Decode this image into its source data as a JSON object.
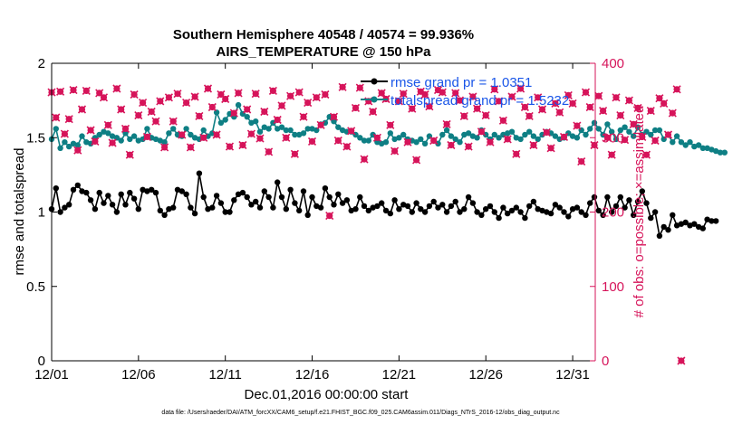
{
  "chart_data": {
    "type": "line",
    "title": "Southern Hemisphere 40548 / 40574 = 99.936%",
    "subtitle": "AIRS_TEMPERATURE @ 150 hPa",
    "xlabel": "Dec.01,2016 00:00:00 start",
    "ylabel": "rmse and totalspread",
    "ylabel_right": "# of obs: o=possible; ×=assimilated",
    "ylim": [
      0,
      2
    ],
    "ylim_right": [
      0,
      400
    ],
    "xlim": [
      0,
      31.3
    ],
    "x_ticks": [
      0,
      5,
      10,
      15,
      20,
      25,
      30
    ],
    "x_tick_labels": [
      "12/01",
      "12/06",
      "12/11",
      "12/16",
      "12/21",
      "12/26",
      "12/31"
    ],
    "y_ticks": [
      0,
      0.5,
      1,
      1.5,
      2
    ],
    "y_tick_labels": [
      "0",
      "0.5",
      "1",
      "1.5",
      "2"
    ],
    "y_ticks_right": [
      0,
      100,
      200,
      300,
      400
    ],
    "y_tick_labels_right": [
      "0",
      "100",
      "200",
      "300",
      "400"
    ],
    "legend_position": "top-right",
    "x_step": 0.25,
    "series": [
      {
        "name": "rmse grand pr = 1.0351",
        "color": "#000000",
        "axis": "left",
        "values": [
          1.02,
          1.16,
          1.0,
          1.03,
          1.05,
          1.15,
          1.18,
          1.14,
          1.13,
          1.08,
          1.02,
          1.13,
          1.06,
          1.11,
          1.05,
          1.0,
          1.12,
          1.05,
          1.13,
          1.09,
          1.02,
          1.15,
          1.14,
          1.15,
          1.13,
          1.01,
          0.98,
          1.02,
          1.03,
          1.15,
          1.14,
          1.12,
          1.03,
          0.99,
          1.26,
          1.1,
          1.02,
          1.03,
          1.11,
          1.06,
          1.0,
          1.0,
          1.08,
          1.12,
          1.13,
          1.1,
          1.05,
          1.07,
          1.03,
          1.14,
          1.1,
          1.03,
          1.2,
          1.1,
          1.02,
          1.15,
          1.06,
          1.01,
          1.14,
          0.98,
          1.1,
          1.04,
          1.03,
          1.16,
          1.1,
          1.05,
          1.12,
          1.06,
          1.08,
          1.01,
          1.02,
          1.1,
          1.04,
          1.01,
          1.03,
          1.04,
          1.06,
          1.01,
          0.99,
          1.08,
          1.02,
          1.05,
          1.04,
          1.0,
          1.06,
          1.02,
          1.0,
          1.04,
          1.07,
          1.03,
          1.05,
          1.0,
          1.04,
          1.07,
          1.0,
          1.02,
          1.1,
          1.06,
          1.0,
          0.98,
          1.02,
          1.04,
          1.0,
          0.96,
          1.03,
          0.99,
          1.01,
          1.03,
          1.0,
          0.96,
          1.04,
          1.07,
          1.02,
          1.01,
          1.0,
          0.99,
          1.05,
          1.03,
          1.0,
          0.97,
          1.02,
          1.03,
          1.0,
          0.98,
          1.06,
          1.1,
          1.01,
          0.98,
          1.1,
          1.0,
          1.04,
          1.1,
          1.03,
          1.08,
          0.98,
          1.07,
          1.14,
          1.06,
          0.96,
          1.0,
          0.84,
          0.9,
          0.88,
          0.98,
          0.91,
          0.92,
          0.93,
          0.91,
          0.92,
          0.9,
          0.89,
          0.95,
          0.94,
          0.94
        ]
      },
      {
        "name": "totalspread grand pr = 1.5232",
        "color": "#0e7f84",
        "axis": "left",
        "values": [
          1.49,
          1.56,
          1.43,
          1.47,
          1.44,
          1.46,
          1.45,
          1.51,
          1.47,
          1.46,
          1.5,
          1.52,
          1.54,
          1.53,
          1.51,
          1.5,
          1.48,
          1.53,
          1.49,
          1.51,
          1.48,
          1.49,
          1.56,
          1.5,
          1.49,
          1.48,
          1.47,
          1.53,
          1.56,
          1.52,
          1.51,
          1.56,
          1.52,
          1.5,
          1.49,
          1.55,
          1.51,
          1.53,
          1.67,
          1.6,
          1.62,
          1.66,
          1.64,
          1.72,
          1.66,
          1.64,
          1.6,
          1.61,
          1.54,
          1.57,
          1.56,
          1.6,
          1.56,
          1.57,
          1.55,
          1.55,
          1.52,
          1.52,
          1.53,
          1.56,
          1.56,
          1.55,
          1.59,
          1.6,
          1.64,
          1.61,
          1.57,
          1.55,
          1.54,
          1.54,
          1.52,
          1.5,
          1.48,
          1.48,
          1.52,
          1.47,
          1.46,
          1.47,
          1.53,
          1.49,
          1.5,
          1.52,
          1.49,
          1.48,
          1.47,
          1.49,
          1.46,
          1.51,
          1.48,
          1.46,
          1.52,
          1.55,
          1.51,
          1.49,
          1.47,
          1.52,
          1.53,
          1.51,
          1.5,
          1.55,
          1.52,
          1.49,
          1.52,
          1.5,
          1.52,
          1.53,
          1.54,
          1.5,
          1.49,
          1.52,
          1.54,
          1.51,
          1.49,
          1.52,
          1.54,
          1.53,
          1.51,
          1.49,
          1.5,
          1.53,
          1.51,
          1.5,
          1.55,
          1.52,
          1.56,
          1.6,
          1.56,
          1.52,
          1.59,
          1.54,
          1.49,
          1.55,
          1.57,
          1.54,
          1.51,
          1.57,
          1.52,
          1.54,
          1.52,
          1.55,
          1.55,
          1.49,
          1.52,
          1.47,
          1.51,
          1.47,
          1.45,
          1.47,
          1.44,
          1.45,
          1.43,
          1.43,
          1.42,
          1.41,
          1.4,
          1.4
        ]
      },
      {
        "name": "obs possible",
        "color": "#d6145a",
        "axis": "right",
        "values": [
          361,
          327,
          362,
          305,
          325,
          364,
          283,
          338,
          363,
          310,
          295,
          360,
          354,
          317,
          293,
          366,
          338,
          312,
          277,
          358,
          330,
          347,
          301,
          335,
          322,
          349,
          287,
          354,
          322,
          359,
          304,
          347,
          287,
          355,
          329,
          300,
          366,
          341,
          304,
          358,
          352,
          288,
          333,
          360,
          290,
          338,
          305,
          359,
          299,
          335,
          281,
          363,
          324,
          343,
          300,
          356,
          278,
          361,
          328,
          347,
          295,
          354,
          317,
          358,
          195,
          328,
          296,
          368,
          288,
          309,
          340,
          367,
          271,
          349,
          335,
          300,
          360,
          352,
          317,
          282,
          349,
          359,
          294,
          339,
          270,
          362,
          358,
          342,
          296,
          364,
          361,
          318,
          290,
          360,
          350,
          329,
          288,
          355,
          339,
          308,
          330,
          294,
          365,
          349,
          323,
          298,
          355,
          278,
          366,
          341,
          329,
          290,
          354,
          338,
          307,
          286,
          346,
          334,
          301,
          357,
          346,
          316,
          268,
          361,
          341,
          290,
          356,
          336,
          300,
          277,
          354,
          330,
          297,
          350,
          318,
          340,
          301,
          277,
          336,
          296,
          353,
          346,
          304,
          333,
          365,
          0
        ]
      }
    ],
    "legend": [
      {
        "label": "rmse grand pr = 1.0351",
        "color": "#000000"
      },
      {
        "label": "totalspread grand pr = 1.5232",
        "color": "#0e7f84"
      }
    ],
    "footnote": "data file: /Users/raeder/DAI/ATM_forcXX/CAM6_setup/f.e21.FHIST_BGC.f09_025.CAM6assim.011/Diags_NTrS_2016-12/obs_diag_output.nc"
  }
}
